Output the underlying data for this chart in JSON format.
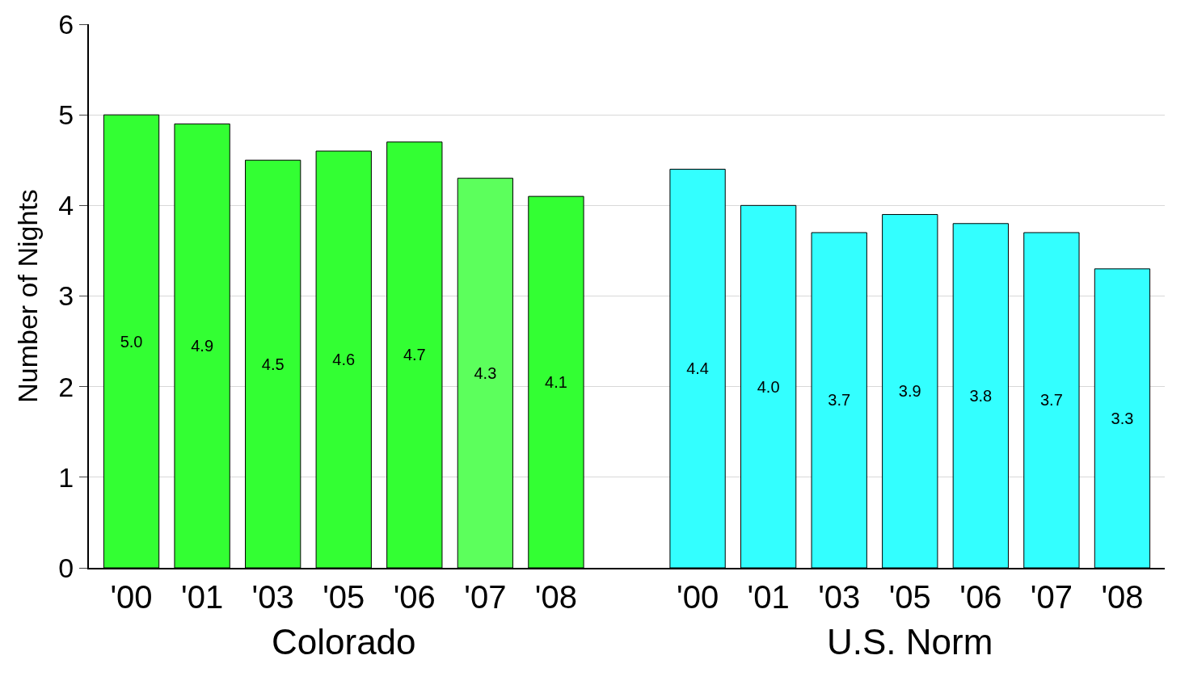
{
  "chart_data": {
    "type": "bar",
    "ylabel": "Number of Nights",
    "categories": [
      "'00",
      "'01",
      "'03",
      "'05",
      "'06",
      "'07",
      "'08",
      null,
      "'00",
      "'01",
      "'03",
      "'05",
      "'06",
      "'07",
      "'08"
    ],
    "values": [
      5.0,
      4.9,
      4.5,
      4.6,
      4.7,
      4.3,
      4.1,
      null,
      4.4,
      4.0,
      3.7,
      3.9,
      3.8,
      3.7,
      3.3
    ],
    "value_labels": [
      "5.0",
      "4.9",
      "4.5",
      "4.6",
      "4.7",
      "4.3",
      "4.1",
      null,
      "4.4",
      "4.0",
      "3.7",
      "3.9",
      "3.8",
      "3.7",
      "3.3"
    ],
    "colors": [
      "#33ff33",
      "#33ff33",
      "#33ff33",
      "#33ff33",
      "#33ff33",
      "#5cff5c",
      "#33ff33",
      "#ffffff",
      "#33ffff",
      "#33ffff",
      "#33ffff",
      "#33ffff",
      "#33ffff",
      "#33ffff",
      "#33ffff"
    ],
    "ylim": [
      0,
      6
    ],
    "yticks": [
      0,
      1,
      2,
      3,
      4,
      5,
      6
    ],
    "grid": "y",
    "annotations": [
      "Colorado",
      "U.S. Norm"
    ]
  }
}
